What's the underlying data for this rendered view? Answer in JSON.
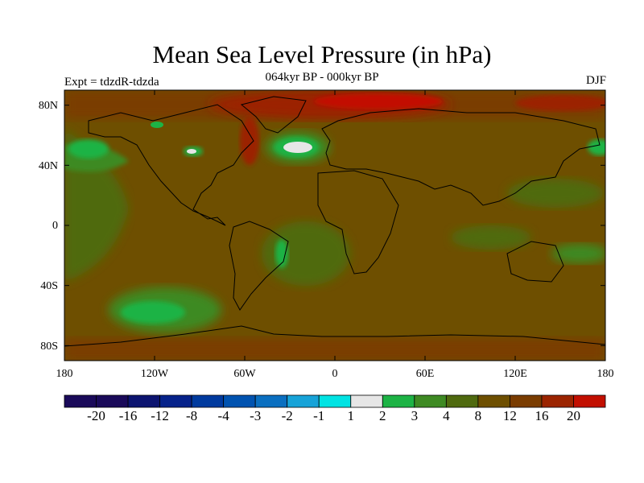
{
  "title": "Mean Sea Level Pressure (in hPa)",
  "subtitle": "064kyr BP - 000kyr BP",
  "experiment": "Expt = tdzdR-tdzda",
  "season": "DJF",
  "lat_labels": [
    "80N",
    "40N",
    "0",
    "40S",
    "80S"
  ],
  "lon_labels": [
    "180",
    "120W",
    "60W",
    "0",
    "60E",
    "120E",
    "180"
  ],
  "colorbar": {
    "labels": [
      "-20",
      "-16",
      "-12",
      "-8",
      "-4",
      "-3",
      "-2",
      "-1",
      "1",
      "2",
      "3",
      "4",
      "8",
      "12",
      "16",
      "20"
    ],
    "colors": [
      "#1a0a5a",
      "#0c1470",
      "#06228a",
      "#003a9e",
      "#0053b0",
      "#0a6fc0",
      "#17a3d8",
      "#00e3e3",
      "#e6e6e6",
      "#1db345",
      "#3e8a23",
      "#4f6a0f",
      "#6e4f00",
      "#7a3c00",
      "#9b2400",
      "#c20f00"
    ]
  },
  "chart_data": {
    "type": "heatmap",
    "title": "Mean Sea Level Pressure (in hPa)",
    "subtitle": "064kyr BP - 000kyr BP",
    "field": "Mean Sea Level Pressure",
    "units": "hPa",
    "season": "DJF",
    "experiment": "Expt = tdzdR-tdzda",
    "xlim": [
      -180,
      180
    ],
    "ylim": [
      -90,
      90
    ],
    "x_ticks": [
      "180",
      "120W",
      "60W",
      "0",
      "60E",
      "120E",
      "180"
    ],
    "y_ticks": [
      "80N",
      "40N",
      "0",
      "40S",
      "80S"
    ],
    "levels": [
      -20,
      -16,
      -12,
      -8,
      -4,
      -3,
      -2,
      -1,
      1,
      2,
      3,
      4,
      8,
      12,
      16,
      20
    ],
    "dominant_range": "4 to 8",
    "features": [
      {
        "region": "North Atlantic (around 45N, 30W)",
        "range": "-1 to 1"
      },
      {
        "region": "Greenland / Arctic",
        "range": "12 to 20+"
      },
      {
        "region": "Southern Pacific (around 55S, 120W)",
        "range": "2 to 3"
      },
      {
        "region": "Tropical Pacific / Southern Ocean band",
        "range": "3 to 4"
      }
    ]
  }
}
